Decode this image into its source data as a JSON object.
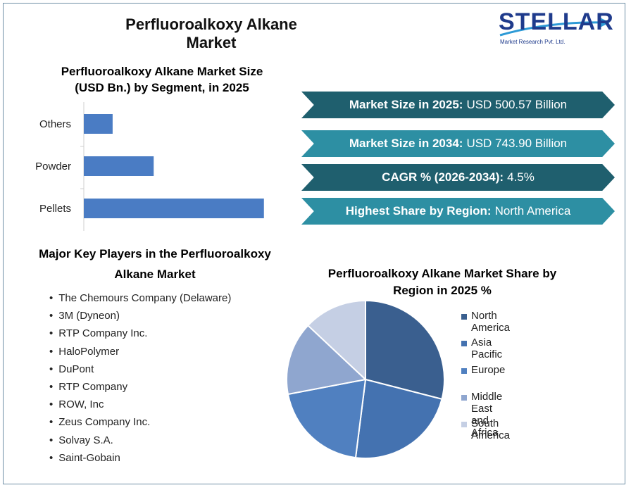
{
  "title": "Perfluoroalkoxy Alkane Market",
  "logo": {
    "name": "STELLAR",
    "tagline": "Market Research Pvt. Ltd."
  },
  "bar_chart": {
    "title_line1": "Perfluoroalkoxy Alkane Market Size",
    "title_line2": "(USD Bn.) by Segment, in 2025"
  },
  "banners": [
    {
      "label": "Market Size in 2025:",
      "value": "USD 500.57 Billion"
    },
    {
      "label": "Market Size in 2034:",
      "value": "USD 743.90 Billion"
    },
    {
      "label": "CAGR % (2026-2034):",
      "value": "4.5%"
    },
    {
      "label": "Highest Share by Region:",
      "value": "North America"
    }
  ],
  "players": {
    "title_line1": "Major Key Players in the Perfluoroalkoxy",
    "title_line2": "Alkane Market",
    "items": [
      "The Chemours Company (Delaware)",
      "3M (Dyneon)",
      "RTP Company Inc.",
      "HaloPolymer",
      "DuPont",
      "RTP Company",
      "ROW, Inc",
      "Zeus Company Inc.",
      "Solvay S.A.",
      "Saint-Gobain"
    ]
  },
  "pie_chart": {
    "title_line1": "Perfluoroalkoxy Alkane Market Share by",
    "title_line2": "Region in 2025 %"
  },
  "colors": {
    "bar": "#4a7cc4",
    "banner_dark": "#1f5f6e",
    "banner_light": "#2d8fa3"
  },
  "chart_data": [
    {
      "type": "bar",
      "orientation": "horizontal",
      "title": "Perfluoroalkoxy Alkane Market Size (USD Bn.) by Segment, in 2025",
      "categories": [
        "Others",
        "Powder",
        "Pellets"
      ],
      "values": [
        40,
        97,
        250
      ],
      "xlim": [
        0,
        260
      ],
      "grid": false,
      "color": "#4a7cc4"
    },
    {
      "type": "pie",
      "title": "Perfluoroalkoxy Alkane Market Share by Region in 2025 %",
      "labels": [
        "North America",
        "Asia Pacific",
        "Europe",
        "Middle East and Africa",
        "South America"
      ],
      "values": [
        29,
        23,
        20,
        15,
        13
      ],
      "colors": [
        "#3a5f8f",
        "#4472b0",
        "#5080c0",
        "#8fa6cf",
        "#c5cfe4"
      ],
      "legend": "right"
    }
  ]
}
